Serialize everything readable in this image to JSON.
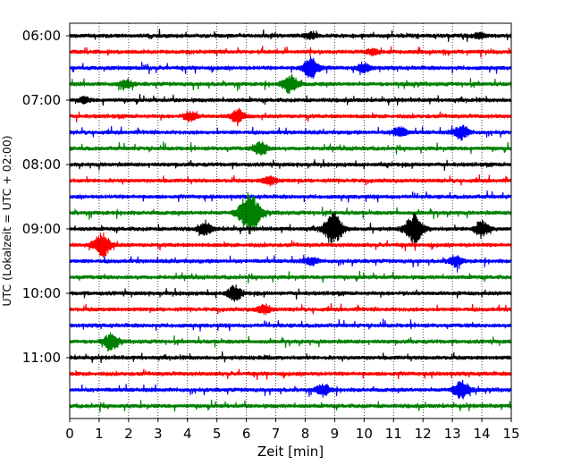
{
  "chart_data": {
    "type": "line",
    "title": "",
    "xlabel": "Zeit  [min]",
    "ylabel": "UTC (Lokalzeit = UTC + 02:00)",
    "xlim": [
      0,
      15
    ],
    "x_ticks": [
      "0",
      "1",
      "2",
      "3",
      "4",
      "5",
      "6",
      "7",
      "8",
      "9",
      "10",
      "11",
      "12",
      "13",
      "14",
      "15"
    ],
    "y_ticks": [
      "06:00",
      "07:00",
      "08:00",
      "09:00",
      "10:00",
      "11:00"
    ],
    "grid": "vertical dotted at each minute",
    "trace_interval_min": 15,
    "start_utc": "06:00",
    "trace_colors": [
      "#000000",
      "#ff0000",
      "#0000ff",
      "#008000"
    ],
    "events": [
      {
        "trace": 0,
        "minute": 8.2,
        "amplitude": 0.25
      },
      {
        "trace": 0,
        "minute": 13.9,
        "amplitude": 0.2
      },
      {
        "trace": 1,
        "minute": 10.3,
        "amplitude": 0.2
      },
      {
        "trace": 2,
        "minute": 8.2,
        "amplitude": 0.8
      },
      {
        "trace": 2,
        "minute": 10.0,
        "amplitude": 0.35
      },
      {
        "trace": 3,
        "minute": 1.9,
        "amplitude": 0.35
      },
      {
        "trace": 3,
        "minute": 7.5,
        "amplitude": 0.7
      },
      {
        "trace": 4,
        "minute": 0.5,
        "amplitude": 0.2
      },
      {
        "trace": 5,
        "minute": 4.1,
        "amplitude": 0.35
      },
      {
        "trace": 5,
        "minute": 5.7,
        "amplitude": 0.5
      },
      {
        "trace": 6,
        "minute": 11.2,
        "amplitude": 0.4
      },
      {
        "trace": 6,
        "minute": 13.3,
        "amplitude": 0.55
      },
      {
        "trace": 7,
        "minute": 6.5,
        "amplitude": 0.5
      },
      {
        "trace": 9,
        "minute": 6.8,
        "amplitude": 0.35
      },
      {
        "trace": 11,
        "minute": 6.1,
        "amplitude": 1.6
      },
      {
        "trace": 12,
        "minute": 4.6,
        "amplitude": 0.45
      },
      {
        "trace": 12,
        "minute": 8.95,
        "amplitude": 1.2
      },
      {
        "trace": 12,
        "minute": 11.7,
        "amplitude": 1.1
      },
      {
        "trace": 12,
        "minute": 14.0,
        "amplitude": 0.6
      },
      {
        "trace": 13,
        "minute": 1.1,
        "amplitude": 0.9
      },
      {
        "trace": 14,
        "minute": 8.2,
        "amplitude": 0.3
      },
      {
        "trace": 14,
        "minute": 13.1,
        "amplitude": 0.4
      },
      {
        "trace": 16,
        "minute": 5.6,
        "amplitude": 0.55
      },
      {
        "trace": 17,
        "minute": 6.6,
        "amplitude": 0.35
      },
      {
        "trace": 19,
        "minute": 1.4,
        "amplitude": 0.6
      },
      {
        "trace": 22,
        "minute": 8.6,
        "amplitude": 0.45
      },
      {
        "trace": 22,
        "minute": 13.3,
        "amplitude": 0.75
      }
    ]
  }
}
